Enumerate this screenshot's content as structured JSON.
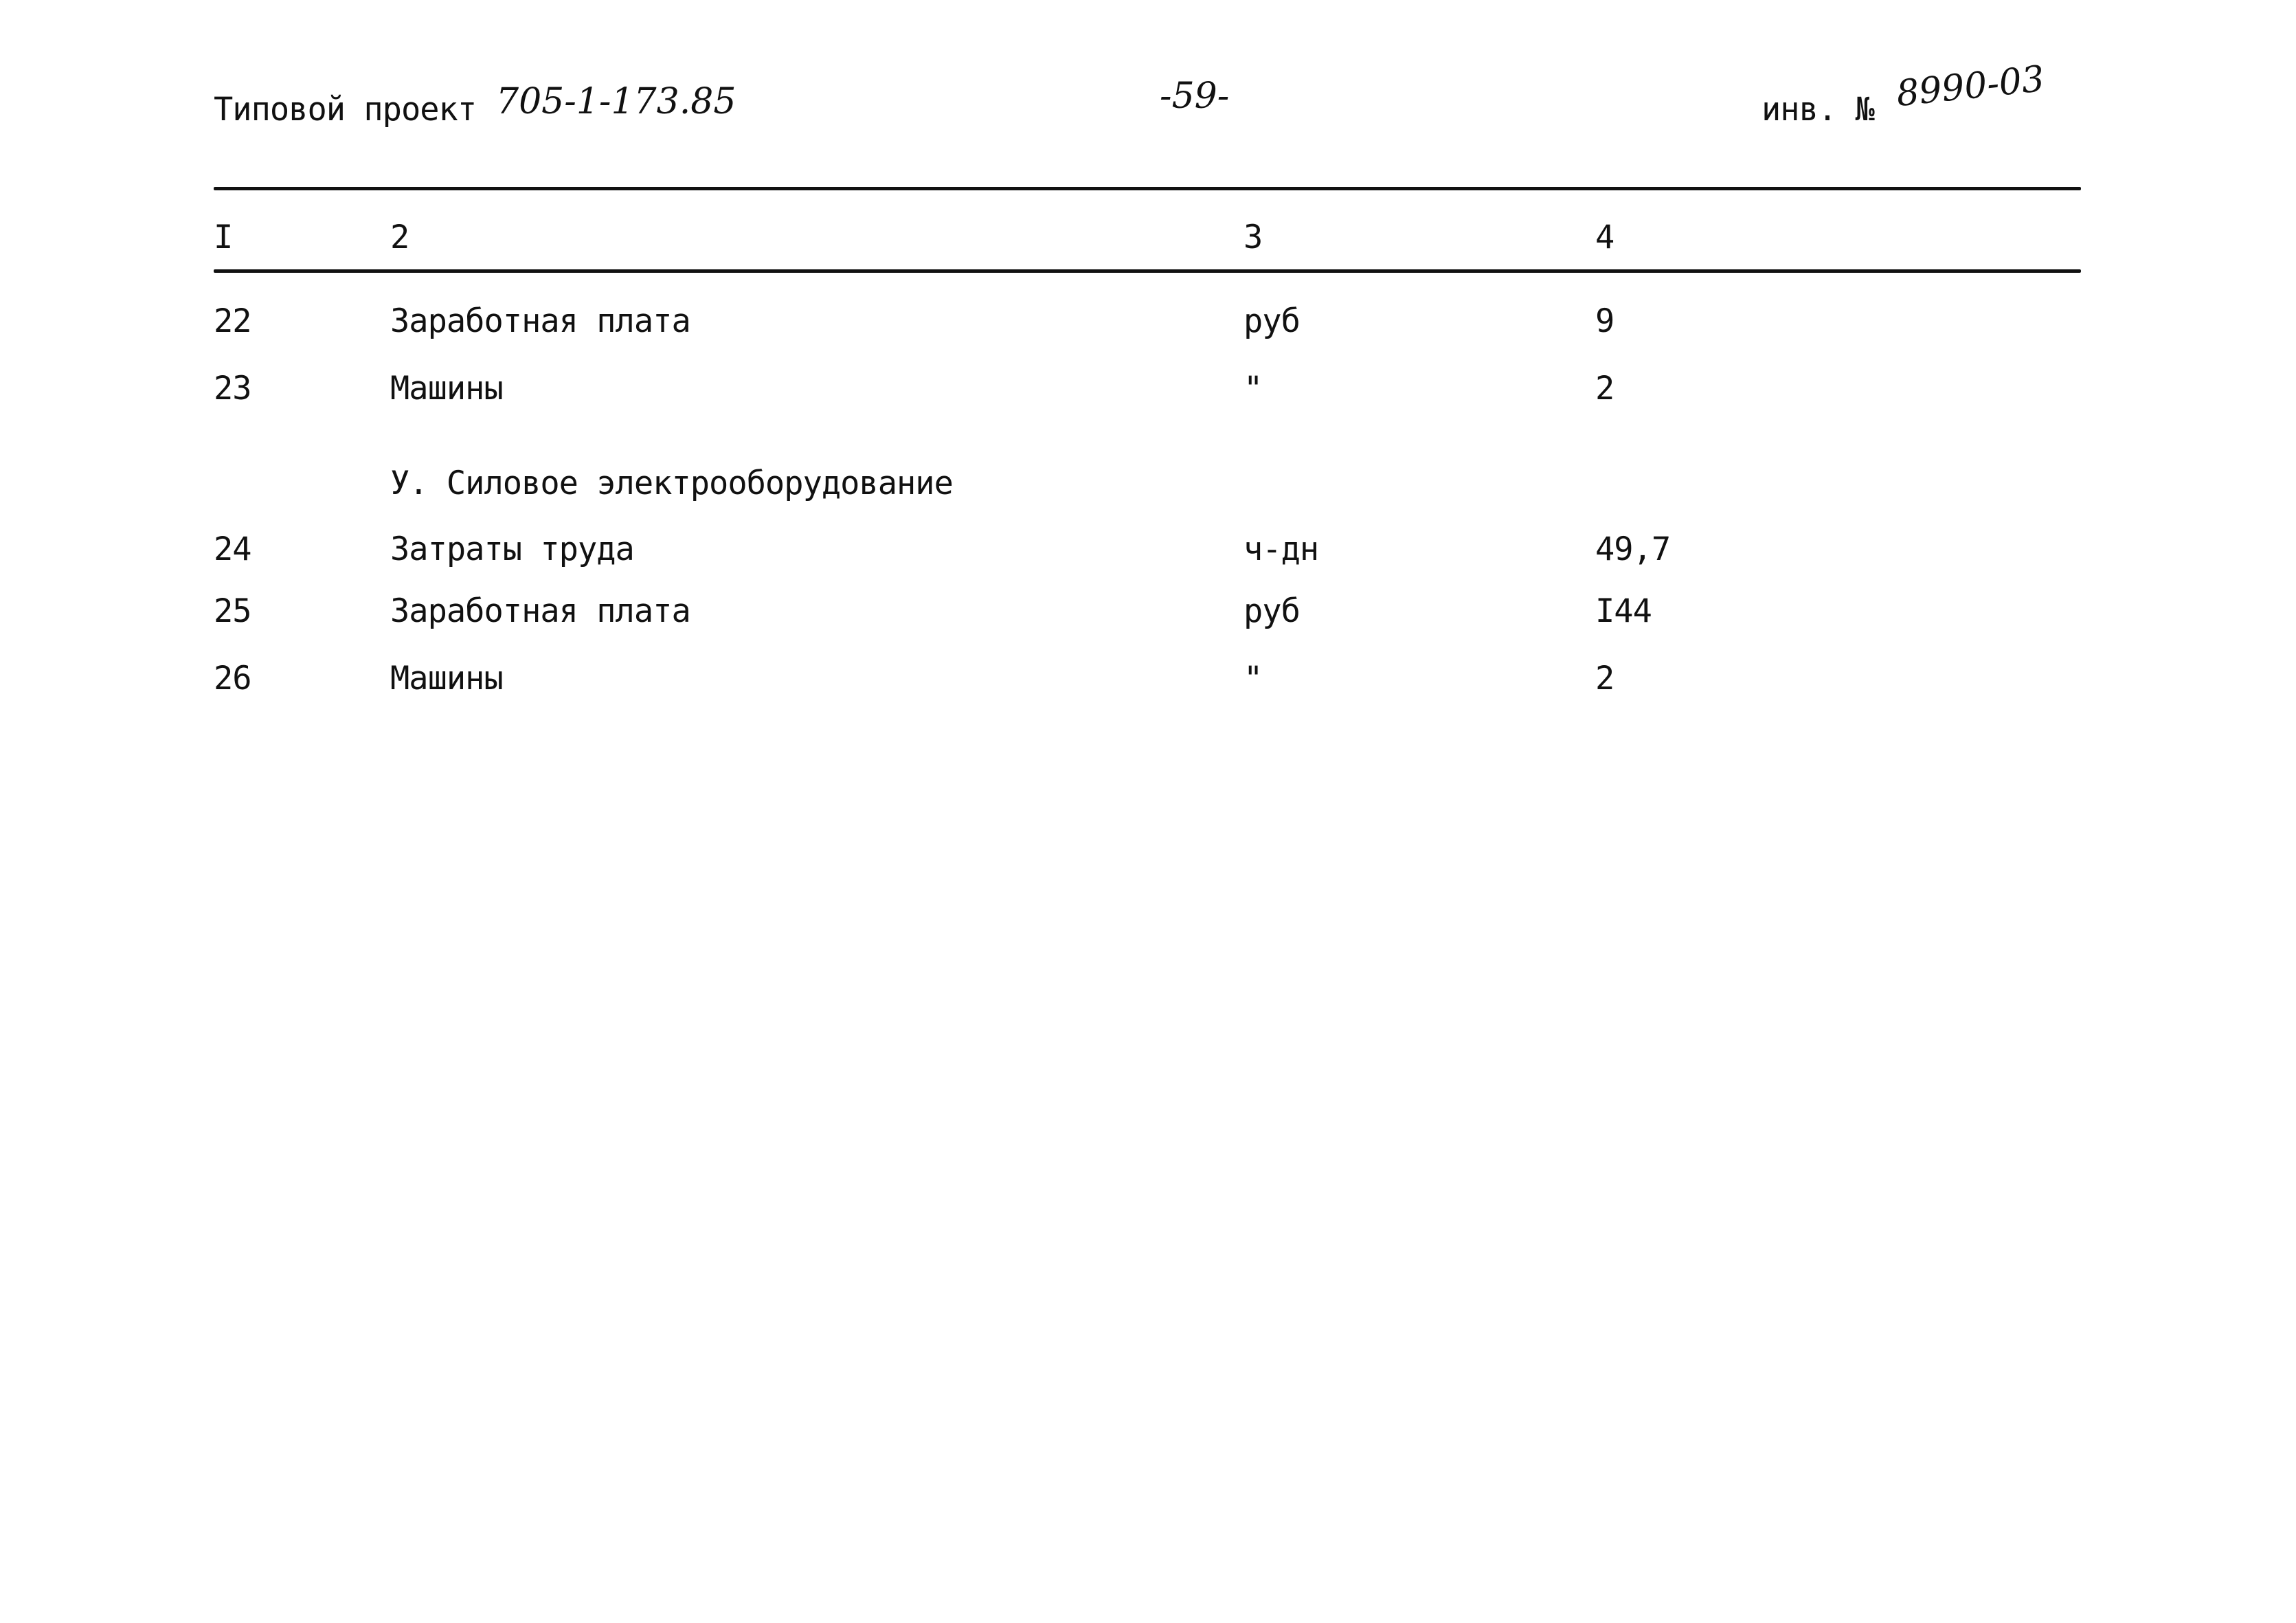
{
  "header": {
    "project_label": "Типовой проект",
    "project_number": "705-1-173.85",
    "page_number": "-59-",
    "inventory_label": "инв. №",
    "inventory_number": "8990-03"
  },
  "table": {
    "columns": [
      "I",
      "2",
      "3",
      "4"
    ],
    "rows": [
      {
        "num": "22",
        "name": "Заработная плата",
        "unit": "руб",
        "value": "9"
      },
      {
        "num": "23",
        "name": "Машины",
        "unit": "\"",
        "value": "2"
      },
      {
        "section": "У. Силовое электрооборудование"
      },
      {
        "num": "24",
        "name": "Затраты труда",
        "unit": "ч-дн",
        "value": "49,7"
      },
      {
        "num": "25",
        "name": "Заработная плата",
        "unit": "руб",
        "value": "I44"
      },
      {
        "num": "26",
        "name": "Машины",
        "unit": "\"",
        "value": "2"
      }
    ]
  }
}
